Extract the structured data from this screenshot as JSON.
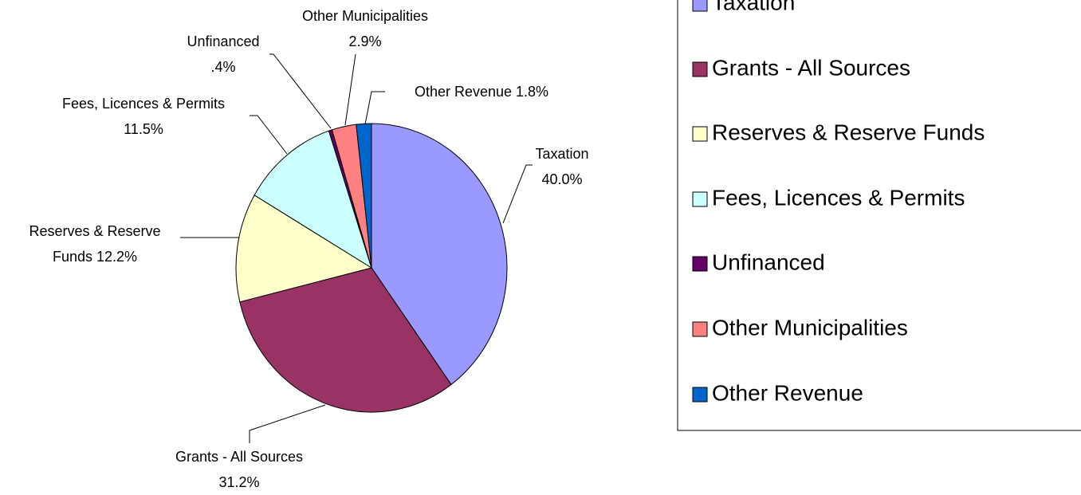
{
  "chart_data": {
    "type": "pie",
    "categories": [
      "Taxation",
      "Grants - All Sources",
      "Reserves & Reserve Funds",
      "Fees, Licences & Permits",
      "Unfinanced",
      "Other Municipalities",
      "Other Revenue"
    ],
    "values": [
      40.0,
      31.2,
      12.2,
      11.5,
      0.4,
      2.9,
      1.8
    ],
    "value_labels": [
      "40.0%",
      "31.2%",
      "12.2%",
      "11.5%",
      ".4%",
      "2.9%",
      "1.8%"
    ],
    "colors": [
      "#9999ff",
      "#993366",
      "#ffffcc",
      "#ccffff",
      "#660066",
      "#ff8080",
      "#0066cc"
    ],
    "legend": "right"
  }
}
